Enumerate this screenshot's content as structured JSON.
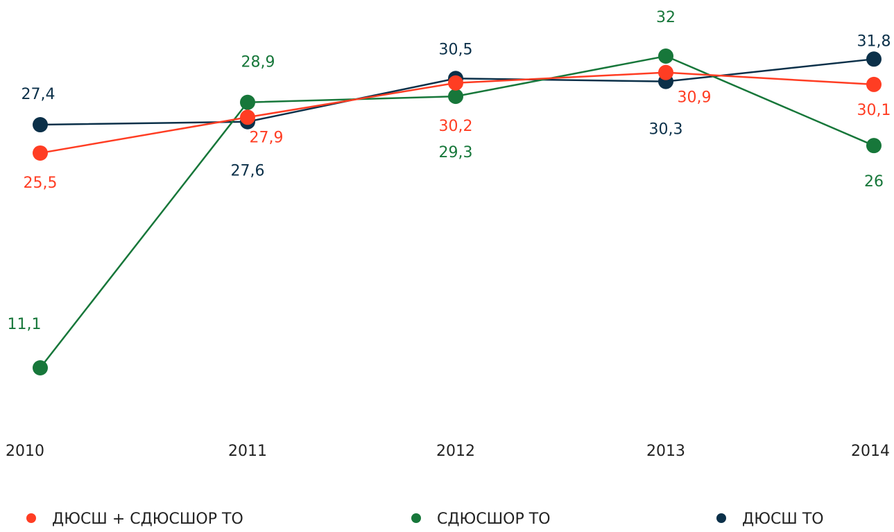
{
  "chart_data": {
    "type": "line",
    "categories": [
      "2010",
      "2011",
      "2012",
      "2013",
      "2014"
    ],
    "series": [
      {
        "name": "ДЮСШ + СДЮСШОР ТО",
        "color": "#ff3d23",
        "values": [
          25.5,
          27.9,
          30.2,
          30.9,
          30.1
        ],
        "value_labels": [
          "25,5",
          "27,9",
          "30,2",
          "30,9",
          "30,1"
        ]
      },
      {
        "name": "СДЮСШОР ТО",
        "color": "#17773a",
        "values": [
          11.1,
          28.9,
          29.3,
          32,
          26
        ],
        "value_labels": [
          "11,1",
          "28,9",
          "29,3",
          "32",
          "26"
        ]
      },
      {
        "name": "ДЮСШ ТО",
        "color": "#0b3049",
        "values": [
          27.4,
          27.6,
          30.5,
          30.3,
          31.8
        ],
        "value_labels": [
          "27,4",
          "27,6",
          "30,5",
          "30,3",
          "31,8"
        ]
      }
    ],
    "grid": false
  }
}
